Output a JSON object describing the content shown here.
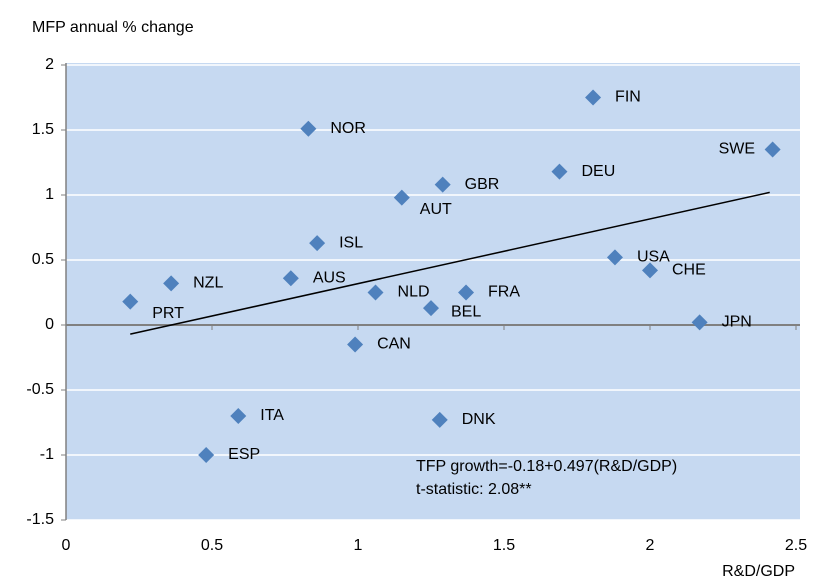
{
  "chart_data": {
    "type": "scatter",
    "title": "MFP annual % change",
    "x_label": "R&D/GDP",
    "annotations": [
      "TFP growth=-0.18+0.497(R&D/GDP)",
      "t-statistic: 2.08**"
    ],
    "xlim": [
      0,
      2.5
    ],
    "xticks": [
      0,
      0.5,
      1,
      1.5,
      2,
      2.5
    ],
    "ylim": [
      -1.5,
      2
    ],
    "yticks": [
      2,
      1.5,
      1,
      0.5,
      0,
      -0.5,
      -1,
      -1.5
    ],
    "grid": true,
    "color": "#4f81bd",
    "background": "#c6d9f1",
    "labels": [
      "FIN",
      "NOR",
      "SWE",
      "DEU",
      "GBR",
      "AUT",
      "ISL",
      "USA",
      "CHE",
      "NZL",
      "AUS",
      "NLD",
      "FRA",
      "PRT",
      "BEL",
      "JPN",
      "CAN",
      "ITA",
      "DNK",
      "ESP"
    ],
    "x": [
      1.805,
      0.83,
      2.42,
      1.69,
      1.29,
      1.15,
      0.86,
      1.88,
      2.0,
      0.36,
      0.77,
      1.06,
      1.37,
      0.22,
      1.25,
      2.17,
      0.99,
      0.59,
      1.28,
      0.48
    ],
    "y": [
      1.75,
      1.51,
      1.35,
      1.18,
      1.08,
      0.98,
      0.63,
      0.52,
      0.42,
      0.32,
      0.36,
      0.25,
      0.25,
      0.18,
      0.13,
      0.02,
      -0.15,
      -0.7,
      -0.73,
      -1.0
    ],
    "trendline": {
      "x": [
        0.22,
        2.41
      ],
      "y": [
        -0.07,
        1.02
      ]
    }
  }
}
